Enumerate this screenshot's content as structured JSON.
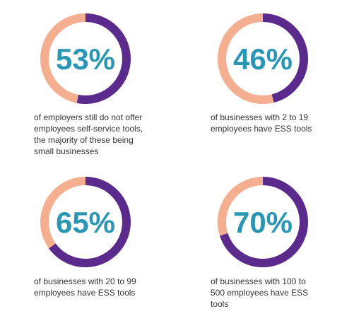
{
  "colors": {
    "value_arc": "#5A2A8C",
    "remainder_arc": "#F4AE90",
    "percent_text": "#2B96B3",
    "caption_text": "#333333"
  },
  "chart_data": [
    {
      "type": "pie",
      "style": "donut",
      "value": 53,
      "label": "53%",
      "caption": "of employers still do not offer\nemployees self-service tools,\nthe majority of these being\nsmall businesses"
    },
    {
      "type": "pie",
      "style": "donut",
      "value": 46,
      "label": "46%",
      "caption": "of businesses with 2 to 19\nemployees have ESS tools"
    },
    {
      "type": "pie",
      "style": "donut",
      "value": 65,
      "label": "65%",
      "caption": "of businesses with 20 to 99\nemployees have ESS tools"
    },
    {
      "type": "pie",
      "style": "donut",
      "value": 70,
      "label": "70%",
      "caption": "of businesses with 100 to\n500 employees have ESS\ntools"
    }
  ]
}
